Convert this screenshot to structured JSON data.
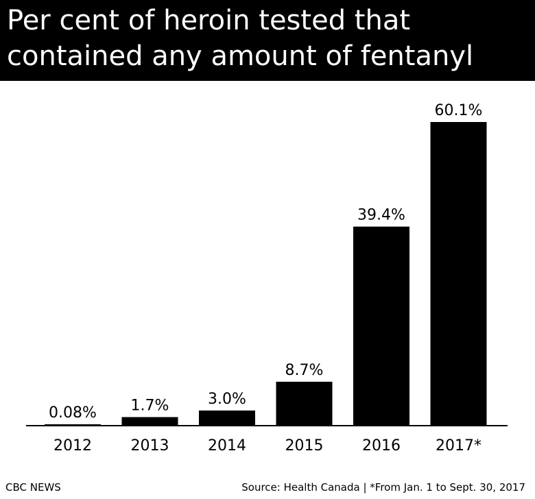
{
  "title": {
    "line1": "Per cent of heroin tested that",
    "line2": "contained any amount of fentanyl"
  },
  "footer": {
    "brand": "CBC NEWS",
    "source": "Source: Health Canada | *From Jan. 1 to Sept. 30, 2017"
  },
  "colors": {
    "bar": "#000000",
    "title_background": "#000000",
    "title_text": "#ffffff",
    "background": "#ffffff"
  },
  "chart_data": {
    "type": "bar",
    "title": "Per cent of heroin tested that contained any amount of fentanyl",
    "categories": [
      "2012",
      "2013",
      "2014",
      "2015",
      "2016",
      "2017*"
    ],
    "values": [
      0.08,
      1.7,
      3.0,
      8.7,
      39.4,
      60.1
    ],
    "data_labels": [
      "0.08%",
      "1.7%",
      "3.0%",
      "8.7%",
      "39.4%",
      "60.1%"
    ],
    "xlabel": "",
    "ylabel": "",
    "ylim": [
      0,
      60.1
    ],
    "grid": false,
    "legend": "none"
  }
}
